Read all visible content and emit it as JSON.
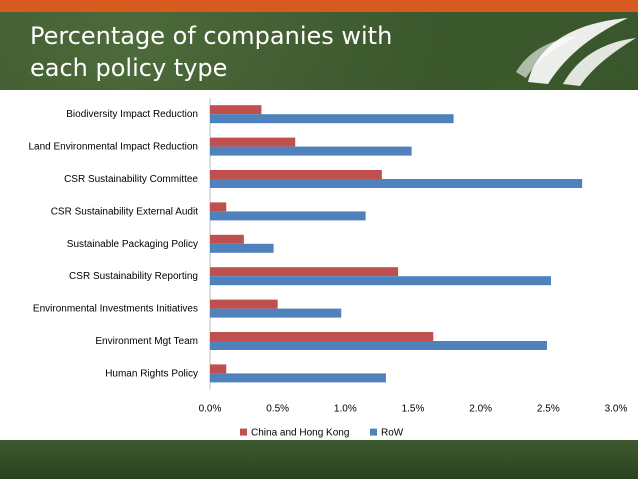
{
  "slide": {
    "title": "Percentage of companies with each policy type"
  },
  "colors": {
    "china": "#c0504d",
    "row": "#4f81bd",
    "accent": "#d85a1e"
  },
  "chart_data": {
    "type": "bar",
    "orientation": "horizontal",
    "categories": [
      "Biodiversity Impact Reduction",
      "Land Environmental Impact Reduction",
      "CSR Sustainability Committee",
      "CSR Sustainability External Audit",
      "Sustainable Packaging Policy",
      "CSR Sustainability Reporting",
      "Environmental Investments Initiatives",
      "Environment Mgt Team",
      "Human Rights Policy"
    ],
    "series": [
      {
        "name": "China and Hong Kong",
        "values": [
          0.38,
          0.63,
          1.27,
          0.12,
          0.25,
          1.39,
          0.5,
          1.65,
          0.12
        ]
      },
      {
        "name": "RoW",
        "values": [
          1.8,
          1.49,
          2.75,
          1.15,
          0.47,
          2.52,
          0.97,
          2.49,
          1.3
        ]
      }
    ],
    "xlim": [
      0,
      3.0
    ],
    "ticks": [
      "0.0%",
      "0.5%",
      "1.0%",
      "1.5%",
      "2.0%",
      "2.5%",
      "3.0%"
    ],
    "legend_position": "bottom",
    "xlabel": "",
    "ylabel": "",
    "grid": false
  }
}
